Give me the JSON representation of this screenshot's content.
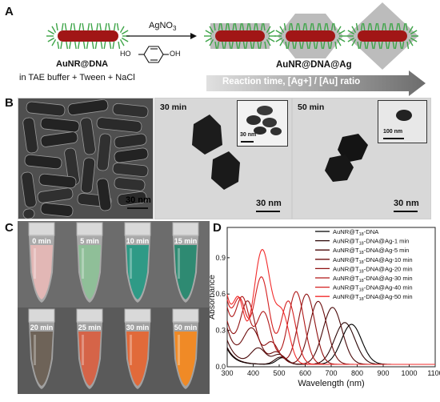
{
  "panel_a": {
    "letter": "A",
    "reagent": "AgNO",
    "reagent_sub": "3",
    "hq_left": "HO",
    "hq_right": "OH",
    "start_label": "AuNR@DNA",
    "buffer_label": "in TAE buffer + Tween + NaCl",
    "product_label": "AuNR@DNA@Ag",
    "arrow_label": "Reaction  time, [Ag+] / [Au] ratio",
    "colors": {
      "rod": "#a11616",
      "dna": "#3da447",
      "shell": "#bcbcbc",
      "arrow_start": "#e0e0e0",
      "arrow_end": "#6c6c6c"
    }
  },
  "panel_b": {
    "letter": "B",
    "images": [
      {
        "time": "",
        "scale": "30 nm"
      },
      {
        "time": "30 min",
        "scale": "30 nm",
        "inset_scale": "30 nm"
      },
      {
        "time": "50 min",
        "scale": "30 nm",
        "inset_scale": "100 nm"
      }
    ]
  },
  "panel_c": {
    "letter": "C",
    "tubes": [
      {
        "label": "0 min",
        "color": "#e2b7b5"
      },
      {
        "label": "5 min",
        "color": "#8fbf98"
      },
      {
        "label": "10 min",
        "color": "#2f9a86"
      },
      {
        "label": "15 min",
        "color": "#2e8a72"
      },
      {
        "label": "20 min",
        "color": "#6e6358"
      },
      {
        "label": "25 min",
        "color": "#d56448"
      },
      {
        "label": "30 min",
        "color": "#e16a3a"
      },
      {
        "label": "50 min",
        "color": "#f08a26"
      }
    ]
  },
  "panel_d": {
    "letter": "D"
  },
  "chart_data": {
    "type": "line",
    "xlabel": "Wavelength (nm)",
    "ylabel": "Absorbance",
    "xlim": [
      300,
      1100
    ],
    "ylim": [
      0,
      1.15
    ],
    "xticks": [
      300,
      400,
      500,
      600,
      700,
      800,
      900,
      1000,
      1100
    ],
    "yticks": [
      0.0,
      0.3,
      0.6,
      0.9
    ],
    "legend_position": "top-right",
    "series": [
      {
        "name": "AuNR@T18-DNA",
        "legend_main": "AuNR@T",
        "legend_sub": "18",
        "legend_tail": "-DNA",
        "color": "#000000",
        "peaks": [
          [
            512,
            0.055,
            30
          ],
          [
            778,
            0.33,
            55
          ]
        ],
        "base": 0.13,
        "decay": 30
      },
      {
        "name": "AuNR@T18-DNA@Ag-1 min",
        "legend_main": "AuNR@T",
        "legend_sub": "18",
        "legend_tail": "-DNA@Ag-1 min",
        "color": "#2b0606",
        "peaks": [
          [
            505,
            0.06,
            32
          ],
          [
            752,
            0.345,
            55
          ]
        ],
        "base": 0.14,
        "decay": 32
      },
      {
        "name": "AuNR@T18-DNA@Ag-5 min",
        "legend_main": "AuNR@T",
        "legend_sub": "18",
        "legend_tail": "-DNA@Ag-5 min",
        "color": "#4a0a0a",
        "peaks": [
          [
            420,
            0.13,
            40
          ],
          [
            500,
            0.08,
            35
          ],
          [
            705,
            0.47,
            52
          ]
        ],
        "base": 0.2,
        "decay": 34
      },
      {
        "name": "AuNR@T18-DNA@Ag-10 min",
        "legend_main": "AuNR@T",
        "legend_sub": "18",
        "legend_tail": "-DNA@Ag-10 min",
        "color": "#6c0e0e",
        "peaks": [
          [
            395,
            0.28,
            45
          ],
          [
            490,
            0.1,
            35
          ],
          [
            650,
            0.52,
            48
          ]
        ],
        "base": 0.3,
        "decay": 36
      },
      {
        "name": "AuNR@T18-DNA@Ag-20 min",
        "legend_main": "AuNR@T",
        "legend_sub": "18",
        "legend_tail": "-DNA@Ag-20 min",
        "color": "#8f1212",
        "peaks": [
          [
            380,
            0.48,
            40
          ],
          [
            470,
            0.18,
            38
          ],
          [
            605,
            0.58,
            45
          ]
        ],
        "base": 0.35,
        "decay": 38
      },
      {
        "name": "AuNR@T18-DNA@Ag-30 min",
        "legend_main": "AuNR@T",
        "legend_sub": "18",
        "legend_tail": "-DNA@Ag-30 min",
        "color": "#b01818",
        "peaks": [
          [
            360,
            0.45,
            35
          ],
          [
            440,
            0.42,
            40
          ],
          [
            565,
            0.6,
            43
          ]
        ],
        "base": 0.45,
        "decay": 40
      },
      {
        "name": "AuNR@T18-DNA@Ag-40 min",
        "legend_main": "AuNR@T",
        "legend_sub": "18",
        "legend_tail": "-DNA@Ag-40 min",
        "color": "#d41f1f",
        "peaks": [
          [
            350,
            0.38,
            32
          ],
          [
            432,
            0.7,
            42
          ],
          [
            535,
            0.52,
            40
          ]
        ],
        "base": 0.5,
        "decay": 42
      },
      {
        "name": "AuNR@T18-DNA@Ag-50 min",
        "legend_main": "AuNR@T",
        "legend_sub": "18",
        "legend_tail": "-DNA@Ag-50 min",
        "color": "#f22b2b",
        "peaks": [
          [
            345,
            0.35,
            28
          ],
          [
            435,
            0.92,
            45
          ],
          [
            512,
            0.4,
            38
          ]
        ],
        "base": 0.55,
        "decay": 42
      }
    ]
  }
}
